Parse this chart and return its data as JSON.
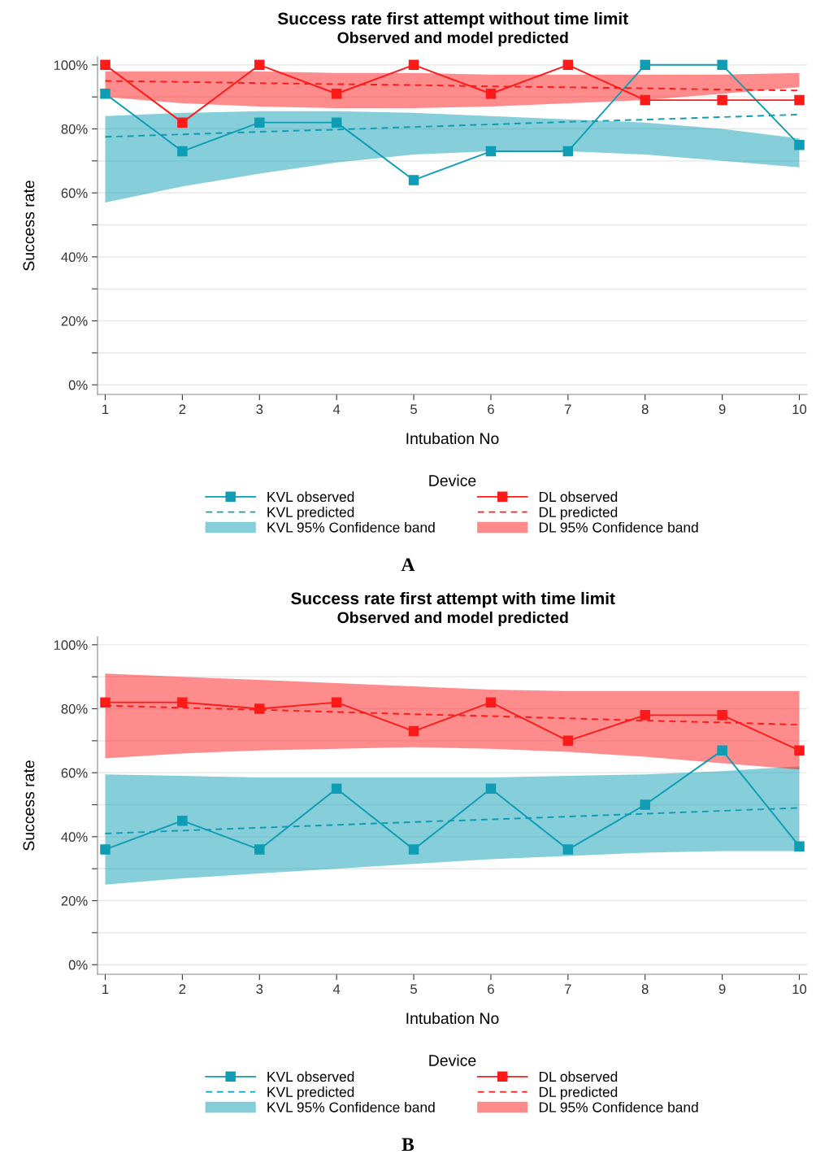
{
  "chart_data": [
    {
      "type": "line",
      "title": "Success rate first attempt without time limit",
      "subtitle": "Observed and model predicted",
      "xlabel": "Intubation No",
      "ylabel": "Success rate",
      "legend_title": "Device",
      "legend": "bottom",
      "grid": "y",
      "annotations": [
        "A",
        "KVL 95% Confidence band",
        "DL 95% Confidence band"
      ],
      "x": [
        1,
        2,
        3,
        4,
        5,
        6,
        7,
        8,
        9,
        10
      ],
      "xlim": [
        0.9,
        10.1
      ],
      "xticks": [
        1,
        2,
        3,
        4,
        5,
        6,
        7,
        8,
        9,
        10
      ],
      "ylim": [
        -3,
        102.5
      ],
      "yticks": [
        {
          "value": 0,
          "label": "0%"
        },
        {
          "value": 10,
          "label": null
        },
        {
          "value": 20,
          "label": "20%"
        },
        {
          "value": 30,
          "label": null
        },
        {
          "value": 40,
          "label": "40%"
        },
        {
          "value": 50,
          "label": null
        },
        {
          "value": 60,
          "label": "60%"
        },
        {
          "value": 70,
          "label": null
        },
        {
          "value": 80,
          "label": "80%"
        },
        {
          "value": 90,
          "label": null
        },
        {
          "value": 100,
          "label": "100%"
        }
      ],
      "series": [
        {
          "name": "KVL observed",
          "color": "#0e9db4",
          "marker": "square",
          "line_style": "solid",
          "values": [
            91,
            73,
            82,
            82,
            64,
            73,
            73,
            100,
            100,
            75
          ]
        },
        {
          "name": "KVL predicted",
          "color": "#0e9db4",
          "marker": "none",
          "line_style": "dashed",
          "values": [
            77.5,
            78.3,
            79.1,
            79.8,
            80.6,
            81.4,
            82.2,
            82.9,
            83.7,
            84.5
          ],
          "lower": [
            57,
            62,
            66,
            69.5,
            72,
            73,
            73,
            72,
            70,
            68
          ],
          "upper": [
            84,
            85,
            85.5,
            85.5,
            85,
            84,
            83,
            82,
            80,
            77
          ]
        },
        {
          "name": "DL observed",
          "color": "#ff1a1a",
          "marker": "square",
          "line_style": "solid",
          "values": [
            100,
            82,
            100,
            91,
            100,
            91,
            100,
            89,
            89,
            89
          ]
        },
        {
          "name": "DL predicted",
          "color": "#ff1a1a",
          "marker": "none",
          "line_style": "dashed",
          "values": [
            95,
            94.7,
            94.3,
            94,
            93.7,
            93.3,
            93,
            92.7,
            92.3,
            92
          ],
          "lower": [
            90,
            88,
            87,
            86.5,
            86.5,
            87,
            88,
            89,
            91,
            93
          ],
          "upper": [
            98,
            98,
            98,
            97.5,
            97.5,
            97,
            97,
            97,
            97,
            97.5
          ]
        }
      ]
    },
    {
      "type": "line",
      "title": "Success rate first attempt with time limit",
      "subtitle": "Observed and model predicted",
      "xlabel": "Intubation No",
      "ylabel": "Success rate",
      "legend_title": "Device",
      "legend": "bottom",
      "grid": "y",
      "annotations": [
        "B",
        "KVL 95% Confidence band",
        "DL 95% Confidence band"
      ],
      "x": [
        1,
        2,
        3,
        4,
        5,
        6,
        7,
        8,
        9,
        10
      ],
      "xlim": [
        0.9,
        10.1
      ],
      "xticks": [
        1,
        2,
        3,
        4,
        5,
        6,
        7,
        8,
        9,
        10
      ],
      "ylim": [
        -3,
        102.5
      ],
      "yticks": [
        {
          "value": 0,
          "label": "0%"
        },
        {
          "value": 10,
          "label": null
        },
        {
          "value": 20,
          "label": "20%"
        },
        {
          "value": 30,
          "label": null
        },
        {
          "value": 40,
          "label": "40%"
        },
        {
          "value": 50,
          "label": null
        },
        {
          "value": 60,
          "label": "60%"
        },
        {
          "value": 70,
          "label": null
        },
        {
          "value": 80,
          "label": "80%"
        },
        {
          "value": 90,
          "label": null
        },
        {
          "value": 100,
          "label": "100%"
        }
      ],
      "series": [
        {
          "name": "KVL observed",
          "color": "#0e9db4",
          "marker": "square",
          "line_style": "solid",
          "values": [
            36,
            45,
            36,
            55,
            36,
            55,
            36,
            50,
            67,
            37
          ]
        },
        {
          "name": "KVL predicted",
          "color": "#0e9db4",
          "marker": "none",
          "line_style": "dashed",
          "values": [
            41,
            41.9,
            42.8,
            43.7,
            44.6,
            45.4,
            46.3,
            47.2,
            48.1,
            49
          ],
          "lower": [
            25,
            27,
            28.5,
            30,
            31.5,
            33,
            34,
            35,
            35.5,
            35.5
          ],
          "upper": [
            59.5,
            59,
            58.5,
            58.5,
            58.5,
            58.5,
            59,
            59.5,
            60.5,
            62
          ]
        },
        {
          "name": "DL observed",
          "color": "#ff1a1a",
          "marker": "square",
          "line_style": "solid",
          "values": [
            82,
            82,
            80,
            82,
            73,
            82,
            70,
            78,
            78,
            67
          ]
        },
        {
          "name": "DL predicted",
          "color": "#ff1a1a",
          "marker": "none",
          "line_style": "dashed",
          "values": [
            81,
            80.3,
            79.7,
            79,
            78.3,
            77.7,
            77,
            76.3,
            75.7,
            75
          ],
          "lower": [
            64.5,
            66,
            67,
            67.5,
            68,
            67.5,
            66.5,
            65,
            63,
            61
          ],
          "upper": [
            91,
            90,
            89,
            88,
            87,
            86,
            85.5,
            85.5,
            85.5,
            85.5
          ]
        }
      ]
    }
  ]
}
